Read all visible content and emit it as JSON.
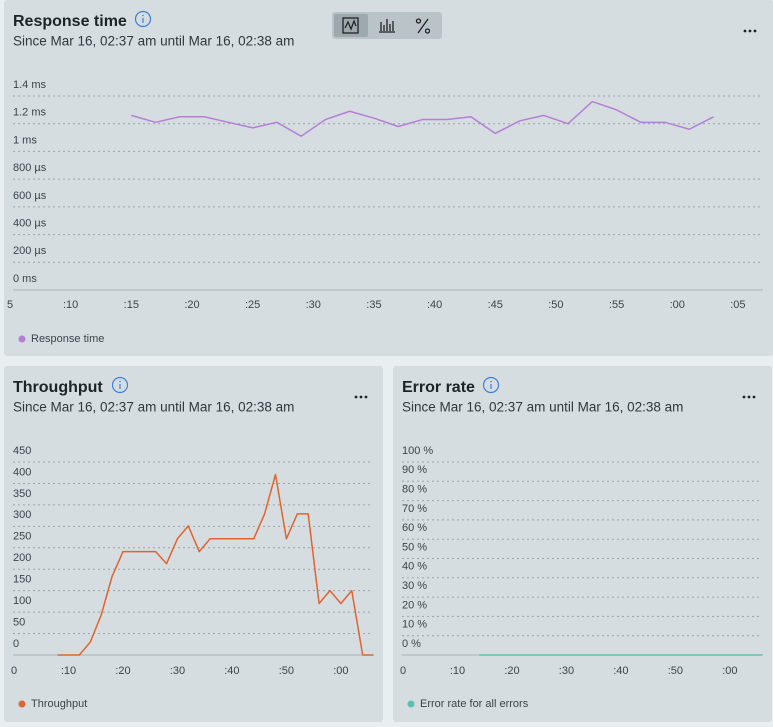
{
  "chart_data": [
    {
      "type": "line",
      "title": "Response time",
      "subtitle": "Since Mar 16, 02:37 am until Mar 16, 02:38 am",
      "x": [
        15,
        17,
        19,
        21,
        23,
        25,
        27,
        29,
        31,
        33,
        35,
        37,
        39,
        41,
        43,
        45,
        47,
        49,
        51,
        53,
        55,
        57,
        59,
        61,
        63
      ],
      "series": [
        {
          "name": "Response time",
          "color": "#b57fd6",
          "values": [
            1.26,
            1.21,
            1.25,
            1.25,
            1.21,
            1.17,
            1.21,
            1.11,
            1.23,
            1.29,
            1.24,
            1.18,
            1.23,
            1.23,
            1.25,
            1.13,
            1.22,
            1.26,
            1.2,
            1.36,
            1.3,
            1.21,
            1.21,
            1.16,
            1.25
          ]
        }
      ],
      "xlim": [
        5,
        66
      ],
      "xticks": [
        5,
        {
          "value": 10,
          "label": ":10"
        },
        {
          "value": 15,
          "label": ":15"
        },
        {
          "value": 20,
          "label": ":20"
        },
        {
          "value": 25,
          "label": ":25"
        },
        {
          "value": 30,
          "label": ":30"
        },
        {
          "value": 35,
          "label": ":35"
        },
        {
          "value": 40,
          "label": ":40"
        },
        {
          "value": 45,
          "label": ":45"
        },
        {
          "value": 50,
          "label": ":50"
        },
        {
          "value": 55,
          "label": ":55"
        },
        {
          "value": 60,
          "label": ":00"
        },
        {
          "value": 65,
          "label": ":05"
        }
      ],
      "ylim": [
        0,
        1.4
      ],
      "yticks": [
        {
          "value": 0,
          "label": "0 ms"
        },
        {
          "value": 0.2,
          "label": "200 µs"
        },
        {
          "value": 0.4,
          "label": "400 µs"
        },
        {
          "value": 0.6,
          "label": "600 µs"
        },
        {
          "value": 0.8,
          "label": "800 µs"
        },
        {
          "value": 1,
          "label": "1 ms"
        },
        {
          "value": 1.2,
          "label": "1.2 ms"
        },
        {
          "value": 1.4,
          "label": "1.4 ms"
        }
      ],
      "grid": true
    },
    {
      "type": "line",
      "title": "Throughput",
      "subtitle": "Since Mar 16, 02:37 am until Mar 16, 02:38 am",
      "x": [
        8,
        10,
        12,
        14,
        16,
        18,
        20,
        22,
        24,
        26,
        28,
        30,
        32,
        34,
        36,
        38,
        40,
        42,
        44,
        46,
        48,
        50,
        52,
        54,
        56,
        58,
        60,
        62,
        64,
        66
      ],
      "series": [
        {
          "name": "Throughput",
          "color": "#e0642f",
          "values": [
            0,
            0,
            0,
            30,
            93,
            183,
            241,
            241,
            241,
            241,
            213,
            271,
            301,
            241,
            271,
            271,
            271,
            271,
            271,
            329,
            421,
            271,
            329,
            329,
            120,
            150,
            120,
            150,
            0,
            0
          ]
        }
      ],
      "xlim": [
        0,
        67
      ],
      "xticks": [
        0,
        {
          "value": 10,
          "label": ":10"
        },
        {
          "value": 20,
          "label": ":20"
        },
        {
          "value": 30,
          "label": ":30"
        },
        {
          "value": 40,
          "label": ":40"
        },
        {
          "value": 50,
          "label": ":50"
        },
        {
          "value": 60,
          "label": ":00"
        }
      ],
      "ylim": [
        0,
        450
      ],
      "yticks": [
        0,
        50,
        100,
        150,
        200,
        250,
        300,
        350,
        400,
        450
      ],
      "grid": true
    },
    {
      "type": "line",
      "title": "Error rate",
      "subtitle": "Since Mar 16, 02:37 am until Mar 16, 02:38 am",
      "x": [
        14,
        16,
        18,
        20,
        22,
        24,
        26,
        28,
        30,
        32,
        34,
        36,
        38,
        40,
        42,
        44,
        46,
        48,
        50,
        52,
        54,
        56,
        58,
        60,
        62,
        64,
        66
      ],
      "series": [
        {
          "name": "Error rate for all errors",
          "color": "#5fbfae",
          "values": [
            0,
            0,
            0,
            0,
            0,
            0,
            0,
            0,
            0,
            0,
            0,
            0,
            0,
            0,
            0,
            0,
            0,
            0,
            0,
            0,
            0,
            0,
            0,
            0,
            0,
            0,
            0
          ]
        }
      ],
      "xlim": [
        0,
        67
      ],
      "xticks": [
        0,
        {
          "value": 10,
          "label": ":10"
        },
        {
          "value": 20,
          "label": ":20"
        },
        {
          "value": 30,
          "label": ":30"
        },
        {
          "value": 40,
          "label": ":40"
        },
        {
          "value": 50,
          "label": ":50"
        },
        {
          "value": 60,
          "label": ":00"
        }
      ],
      "ylim": [
        0,
        100
      ],
      "yticks": [
        {
          "value": 0,
          "label": "0 %"
        },
        {
          "value": 10,
          "label": "10 %"
        },
        {
          "value": 20,
          "label": "20 %"
        },
        {
          "value": 30,
          "label": "30 %"
        },
        {
          "value": 40,
          "label": "40 %"
        },
        {
          "value": 50,
          "label": "50 %"
        },
        {
          "value": 60,
          "label": "60 %"
        },
        {
          "value": 70,
          "label": "70 %"
        },
        {
          "value": 80,
          "label": "80 %"
        },
        {
          "value": 90,
          "label": "90 %"
        },
        {
          "value": 100,
          "label": "100 %"
        }
      ],
      "grid": true
    }
  ]
}
